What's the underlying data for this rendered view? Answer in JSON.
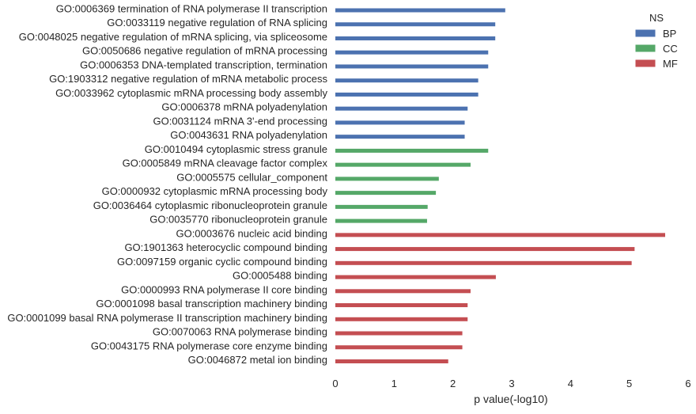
{
  "chart_data": {
    "type": "bar",
    "orientation": "horizontal",
    "xlabel": "p value(-log10)",
    "ylabel": "",
    "xlim": [
      0,
      6
    ],
    "x_ticks": [
      "0",
      "1",
      "2",
      "3",
      "4",
      "5",
      "6"
    ],
    "grid": false,
    "legend": {
      "title": "NS",
      "placement": "top-right",
      "entries": [
        {
          "name": "BP",
          "color": "#4c72b0"
        },
        {
          "name": "CC",
          "color": "#55a868"
        },
        {
          "name": "MF",
          "color": "#c44e52"
        }
      ]
    },
    "bars": [
      {
        "label": "GO:0006369 termination of RNA polymerase II transcription",
        "value": 2.89,
        "group": "BP"
      },
      {
        "label": "GO:0033119 negative regulation of RNA splicing",
        "value": 2.72,
        "group": "BP"
      },
      {
        "label": "GO:0048025 negative regulation of mRNA splicing, via spliceosome",
        "value": 2.72,
        "group": "BP"
      },
      {
        "label": "GO:0050686 negative regulation of mRNA processing",
        "value": 2.6,
        "group": "BP"
      },
      {
        "label": "GO:0006353 DNA-templated transcription, termination",
        "value": 2.6,
        "group": "BP"
      },
      {
        "label": "GO:1903312 negative regulation of mRNA metabolic process",
        "value": 2.43,
        "group": "BP"
      },
      {
        "label": "GO:0033962 cytoplasmic mRNA processing body assembly",
        "value": 2.43,
        "group": "BP"
      },
      {
        "label": "GO:0006378 mRNA polyadenylation",
        "value": 2.25,
        "group": "BP"
      },
      {
        "label": "GO:0031124 mRNA 3'-end processing",
        "value": 2.2,
        "group": "BP"
      },
      {
        "label": "GO:0043631 RNA polyadenylation",
        "value": 2.2,
        "group": "BP"
      },
      {
        "label": "GO:0010494 cytoplasmic stress granule",
        "value": 2.6,
        "group": "CC"
      },
      {
        "label": "GO:0005849 mRNA cleavage factor complex",
        "value": 2.3,
        "group": "CC"
      },
      {
        "label": "GO:0005575 cellular_component",
        "value": 1.76,
        "group": "CC"
      },
      {
        "label": "GO:0000932 cytoplasmic mRNA processing body",
        "value": 1.71,
        "group": "CC"
      },
      {
        "label": "GO:0036464 cytoplasmic ribonucleoprotein granule",
        "value": 1.57,
        "group": "CC"
      },
      {
        "label": "GO:0035770 ribonucleoprotein granule",
        "value": 1.56,
        "group": "CC"
      },
      {
        "label": "GO:0003676 nucleic acid binding",
        "value": 5.61,
        "group": "MF"
      },
      {
        "label": "GO:1901363 heterocyclic compound binding",
        "value": 5.09,
        "group": "MF"
      },
      {
        "label": "GO:0097159 organic cyclic compound binding",
        "value": 5.04,
        "group": "MF"
      },
      {
        "label": "GO:0005488 binding",
        "value": 2.73,
        "group": "MF"
      },
      {
        "label": "GO:0000993 RNA polymerase II core binding",
        "value": 2.3,
        "group": "MF"
      },
      {
        "label": "GO:0001098 basal transcription machinery binding",
        "value": 2.25,
        "group": "MF"
      },
      {
        "label": "GO:0001099 basal RNA polymerase II transcription machinery binding",
        "value": 2.25,
        "group": "MF"
      },
      {
        "label": "GO:0070063 RNA polymerase binding",
        "value": 2.16,
        "group": "MF"
      },
      {
        "label": "GO:0043175 RNA polymerase core enzyme binding",
        "value": 2.16,
        "group": "MF"
      },
      {
        "label": "GO:0046872 metal ion binding",
        "value": 1.92,
        "group": "MF"
      }
    ]
  }
}
